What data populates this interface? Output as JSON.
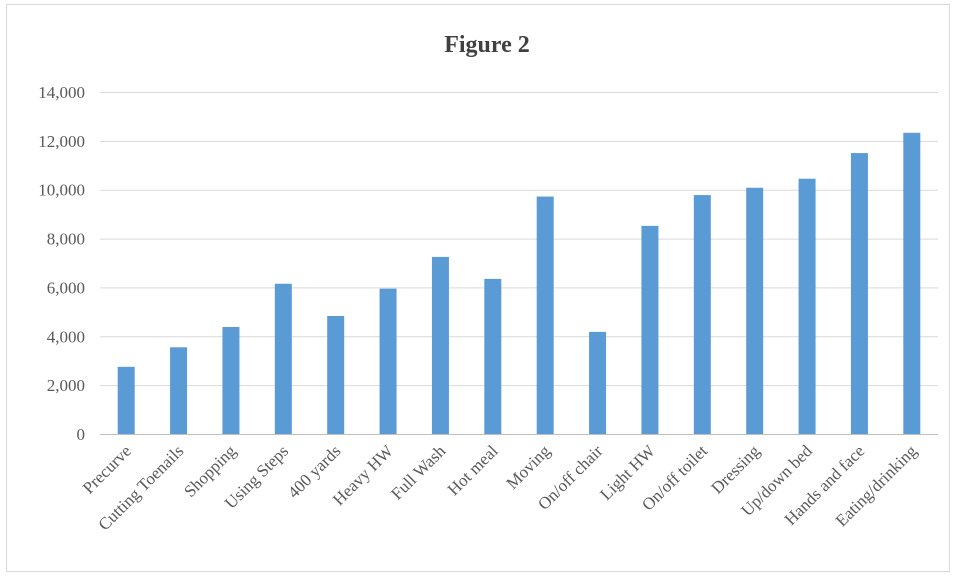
{
  "chart_data": {
    "type": "bar",
    "title": "Figure 2",
    "xlabel": "",
    "ylabel": "",
    "ylim": [
      0,
      14000
    ],
    "yticks": [
      "0",
      "2,000",
      "4,000",
      "6,000",
      "8,000",
      "10,000",
      "12,000",
      "14,000"
    ],
    "ytick_values": [
      0,
      2000,
      4000,
      6000,
      8000,
      10000,
      12000,
      14000
    ],
    "grid": true,
    "legend": "none",
    "bar_color": "#5b9bd5",
    "categories": [
      "Precurve",
      "Cutting Toenails",
      "Shopping",
      "Using Steps",
      "400 yards",
      "Heavy HW",
      "Full Wash",
      "Hot meal",
      "Moving",
      "On/off chair",
      "Light HW",
      "On/off toilet",
      "Dressing",
      "Up/down bed",
      "Hands and face",
      "Eating/drinking"
    ],
    "values": [
      2750,
      3550,
      4380,
      6150,
      4830,
      5950,
      7250,
      6350,
      9720,
      4180,
      8520,
      9780,
      10080,
      10450,
      11500,
      12330
    ]
  }
}
